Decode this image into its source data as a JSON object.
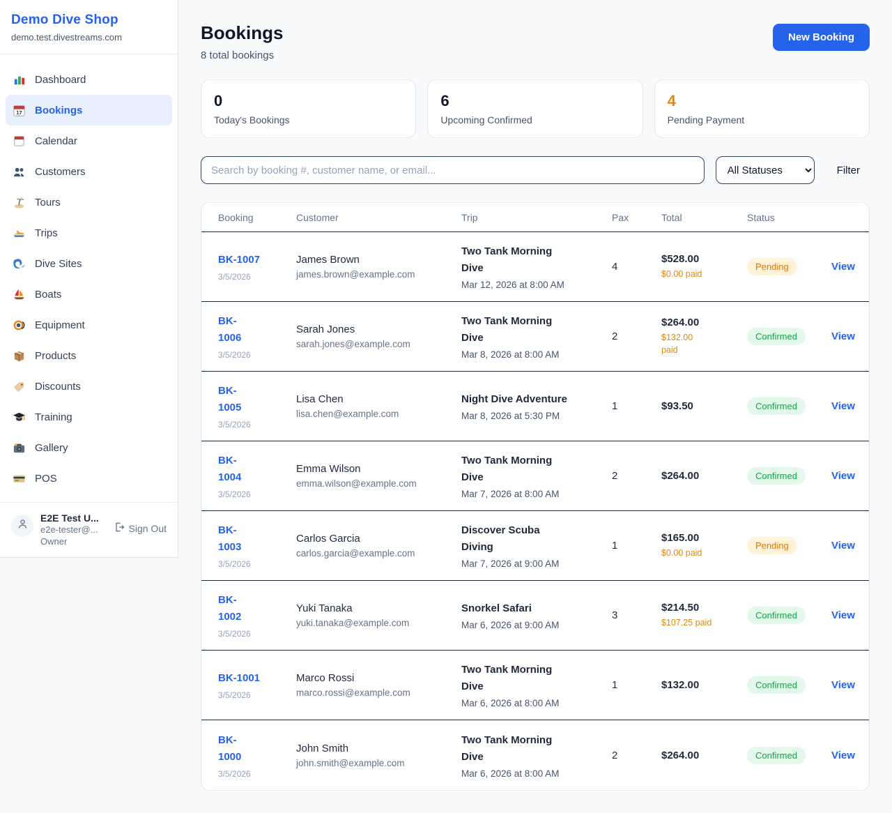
{
  "colors": {
    "accent_blue": "#2563eb",
    "orange": "#e1890e",
    "pending_badge_bg": "#fcf3d9",
    "pending_badge_text": "#d97706",
    "confirmed_badge_bg": "#e3f7eb",
    "confirmed_badge_text": "#16a34a"
  },
  "sidebar": {
    "brand": "Demo Dive Shop",
    "domain": "demo.test.divestreams.com",
    "items": [
      {
        "icon": "bar-chart-icon",
        "label": "Dashboard",
        "active": false
      },
      {
        "icon": "calendar-date-icon",
        "label": "Bookings",
        "active": true
      },
      {
        "icon": "calendar-icon",
        "label": "Calendar",
        "active": false
      },
      {
        "icon": "users-icon",
        "label": "Customers",
        "active": false
      },
      {
        "icon": "island-icon",
        "label": "Tours",
        "active": false
      },
      {
        "icon": "speedboat-icon",
        "label": "Trips",
        "active": false
      },
      {
        "icon": "wave-icon",
        "label": "Dive Sites",
        "active": false
      },
      {
        "icon": "sailboat-icon",
        "label": "Boats",
        "active": false
      },
      {
        "icon": "dive-mask-icon",
        "label": "Equipment",
        "active": false
      },
      {
        "icon": "package-icon",
        "label": "Products",
        "active": false
      },
      {
        "icon": "tag-icon",
        "label": "Discounts",
        "active": false
      },
      {
        "icon": "graduation-cap-icon",
        "label": "Training",
        "active": false
      },
      {
        "icon": "camera-icon",
        "label": "Gallery",
        "active": false
      },
      {
        "icon": "credit-card-icon",
        "label": "POS",
        "active": false
      }
    ],
    "user": {
      "name": "E2E Test U...",
      "email": "e2e-tester@...",
      "role": "Owner",
      "sign_out": "Sign Out"
    }
  },
  "header": {
    "title": "Bookings",
    "subtitle": "8 total bookings",
    "new_booking_label": "New Booking"
  },
  "stats": [
    {
      "value": "0",
      "label": "Today's Bookings",
      "highlight": false
    },
    {
      "value": "6",
      "label": "Upcoming Confirmed",
      "highlight": false
    },
    {
      "value": "4",
      "label": "Pending Payment",
      "highlight": true
    }
  ],
  "filters": {
    "search_placeholder": "Search by booking #, customer name, or email...",
    "status_selected": "All Statuses",
    "filter_label": "Filter"
  },
  "table": {
    "columns": [
      "Booking",
      "Customer",
      "Trip",
      "Pax",
      "Total",
      "Status"
    ],
    "rows": [
      {
        "id_lines": [
          "BK-1007"
        ],
        "date": "3/5/2026",
        "name": "James Brown",
        "email": "james.brown@example.com",
        "trip_lines": [
          "Two Tank Morning",
          "Dive"
        ],
        "trip_date": "Mar 12, 2026 at 8:00 AM",
        "pax": "4",
        "total": "$528.00",
        "paid_lines": [
          "$0.00 paid"
        ],
        "status": "Pending",
        "action": "View"
      },
      {
        "id_lines": [
          "BK-",
          "1006"
        ],
        "date": "3/5/2026",
        "name": "Sarah Jones",
        "email": "sarah.jones@example.com",
        "trip_lines": [
          "Two Tank Morning",
          "Dive"
        ],
        "trip_date": "Mar 8, 2026 at 8:00 AM",
        "pax": "2",
        "total": "$264.00",
        "paid_lines": [
          "$132.00",
          "paid"
        ],
        "status": "Confirmed",
        "action": "View"
      },
      {
        "id_lines": [
          "BK-",
          "1005"
        ],
        "date": "3/5/2026",
        "name": "Lisa Chen",
        "email": "lisa.chen@example.com",
        "trip_lines": [
          "Night Dive Adventure"
        ],
        "trip_date": "Mar 8, 2026 at 5:30 PM",
        "pax": "1",
        "total": "$93.50",
        "paid_lines": [],
        "status": "Confirmed",
        "action": "View"
      },
      {
        "id_lines": [
          "BK-",
          "1004"
        ],
        "date": "3/5/2026",
        "name": "Emma Wilson",
        "email": "emma.wilson@example.com",
        "trip_lines": [
          "Two Tank Morning",
          "Dive"
        ],
        "trip_date": "Mar 7, 2026 at 8:00 AM",
        "pax": "2",
        "total": "$264.00",
        "paid_lines": [],
        "status": "Confirmed",
        "action": "View"
      },
      {
        "id_lines": [
          "BK-",
          "1003"
        ],
        "date": "3/5/2026",
        "name": "Carlos Garcia",
        "email": "carlos.garcia@example.com",
        "trip_lines": [
          "Discover Scuba",
          "Diving"
        ],
        "trip_date": "Mar 7, 2026 at 9:00 AM",
        "pax": "1",
        "total": "$165.00",
        "paid_lines": [
          "$0.00 paid"
        ],
        "status": "Pending",
        "action": "View"
      },
      {
        "id_lines": [
          "BK-",
          "1002"
        ],
        "date": "3/5/2026",
        "name": "Yuki Tanaka",
        "email": "yuki.tanaka@example.com",
        "trip_lines": [
          "Snorkel Safari"
        ],
        "trip_date": "Mar 6, 2026 at 9:00 AM",
        "pax": "3",
        "total": "$214.50",
        "paid_lines": [
          "$107.25 paid"
        ],
        "status": "Confirmed",
        "action": "View"
      },
      {
        "id_lines": [
          "BK-1001"
        ],
        "date": "3/5/2026",
        "name": "Marco Rossi",
        "email": "marco.rossi@example.com",
        "trip_lines": [
          "Two Tank Morning",
          "Dive"
        ],
        "trip_date": "Mar 6, 2026 at 8:00 AM",
        "pax": "1",
        "total": "$132.00",
        "paid_lines": [],
        "status": "Confirmed",
        "action": "View"
      },
      {
        "id_lines": [
          "BK-",
          "1000"
        ],
        "date": "3/5/2026",
        "name": "John Smith",
        "email": "john.smith@example.com",
        "trip_lines": [
          "Two Tank Morning",
          "Dive"
        ],
        "trip_date": "Mar 6, 2026 at 8:00 AM",
        "pax": "2",
        "total": "$264.00",
        "paid_lines": [],
        "status": "Confirmed",
        "action": "View"
      }
    ]
  }
}
